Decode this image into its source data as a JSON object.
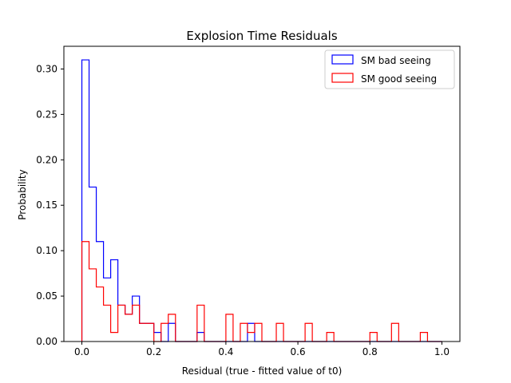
{
  "chart_data": {
    "type": "histogram",
    "title": "Explosion Time Residuals",
    "xlabel": "Residual (true - fitted value of t0)",
    "ylabel": "Probability",
    "xlim": [
      -0.05,
      1.05
    ],
    "ylim": [
      0,
      0.325
    ],
    "xticks": [
      0.0,
      0.2,
      0.4,
      0.6,
      0.8,
      1.0
    ],
    "xtick_labels": [
      "0.0",
      "0.2",
      "0.4",
      "0.6",
      "0.8",
      "1.0"
    ],
    "yticks": [
      0.0,
      0.05,
      0.1,
      0.15,
      0.2,
      0.25,
      0.3
    ],
    "ytick_labels": [
      "0.00",
      "0.05",
      "0.10",
      "0.15",
      "0.20",
      "0.25",
      "0.30"
    ],
    "bin_start": 0.0,
    "bin_width": 0.02,
    "legend_position": "top-right",
    "series": [
      {
        "name": "SM bad seeing",
        "color": "#0000ff",
        "values": [
          0.31,
          0.17,
          0.11,
          0.07,
          0.09,
          0.04,
          0.03,
          0.05,
          0.02,
          0.02,
          0.01,
          0.0,
          0.02,
          0.0,
          0.0,
          0.0,
          0.01,
          0.0,
          0.0,
          0.0,
          0.0,
          0.0,
          0.0,
          0.02,
          0.0,
          0.0,
          0.0,
          0.0,
          0.0,
          0.0,
          0.0,
          0.0,
          0.0,
          0.0,
          0.0,
          0.0,
          0.0,
          0.0,
          0.0,
          0.0,
          0.0,
          0.0,
          0.0,
          0.0,
          0.0,
          0.0,
          0.0,
          0.0,
          0.0,
          0.0
        ]
      },
      {
        "name": "SM good seeing",
        "color": "#ff0000",
        "values": [
          0.11,
          0.08,
          0.06,
          0.04,
          0.01,
          0.04,
          0.03,
          0.04,
          0.02,
          0.02,
          0.0,
          0.02,
          0.03,
          0.0,
          0.0,
          0.0,
          0.04,
          0.0,
          0.0,
          0.0,
          0.03,
          0.0,
          0.02,
          0.01,
          0.02,
          0.0,
          0.0,
          0.02,
          0.0,
          0.0,
          0.0,
          0.02,
          0.0,
          0.0,
          0.01,
          0.0,
          0.0,
          0.0,
          0.0,
          0.0,
          0.01,
          0.0,
          0.0,
          0.02,
          0.0,
          0.0,
          0.0,
          0.01,
          0.0,
          0.0
        ]
      }
    ]
  }
}
